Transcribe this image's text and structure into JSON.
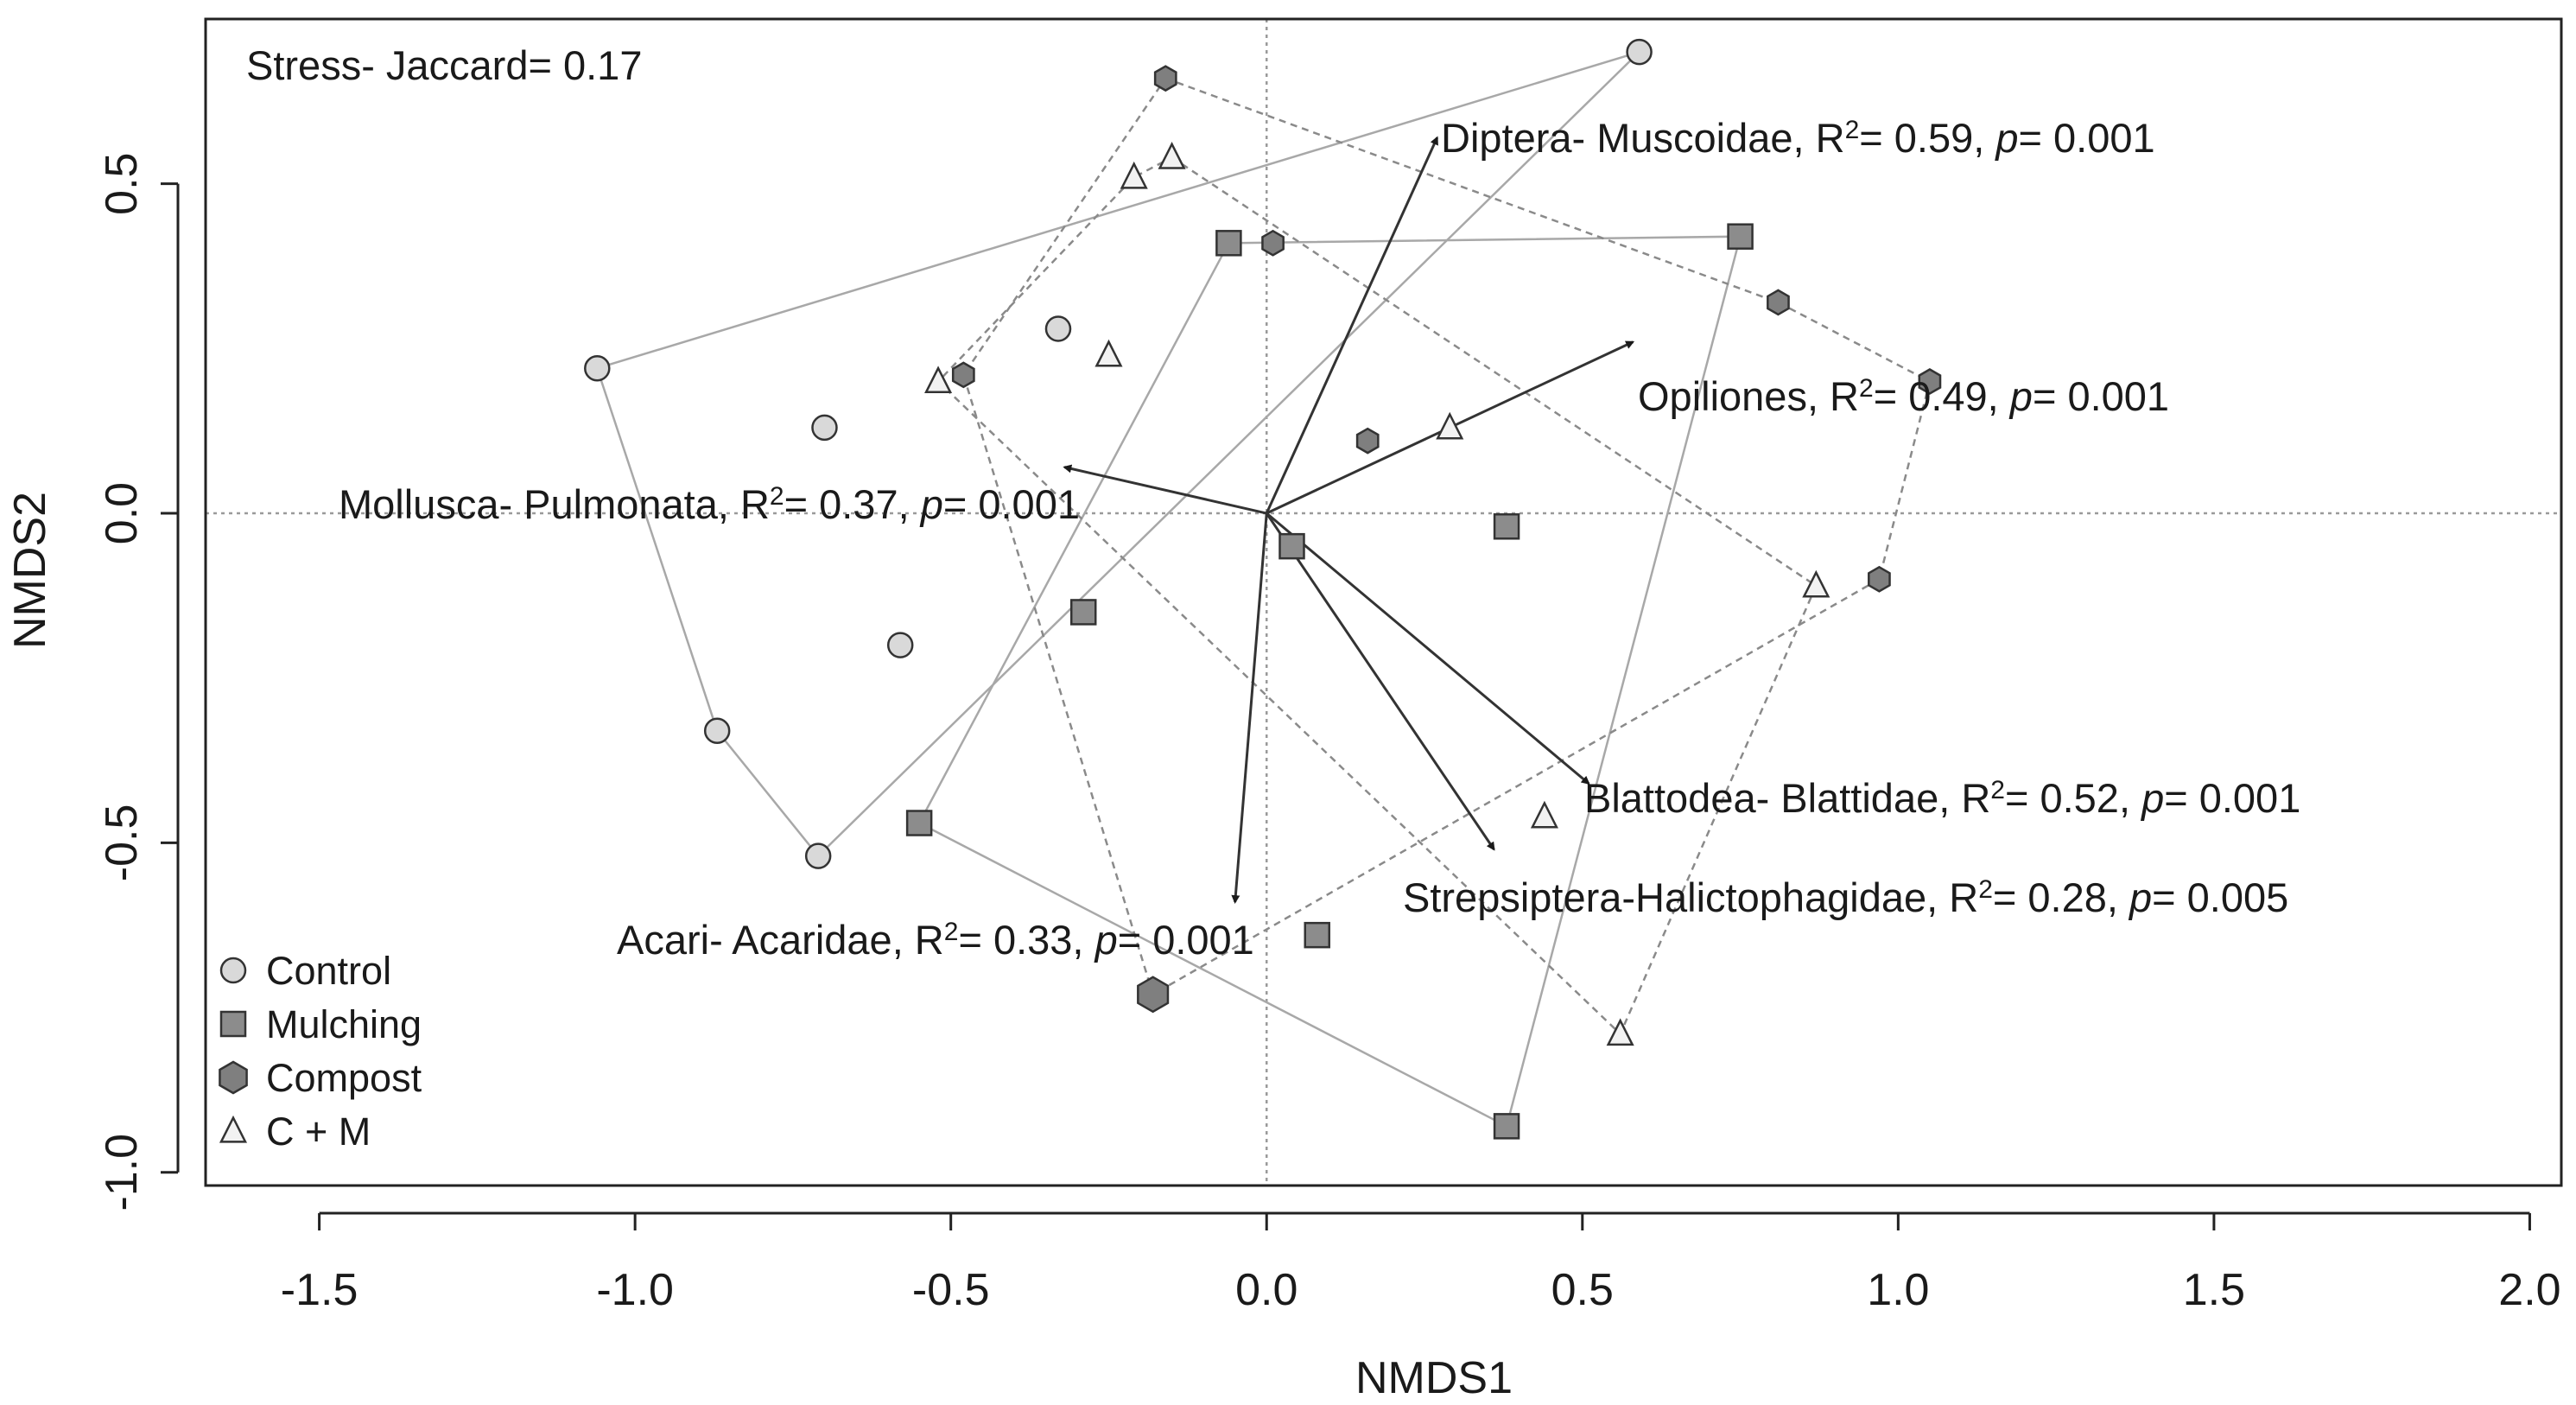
{
  "chart_data": {
    "type": "scatter",
    "subtype": "nmds-ordination-with-convex-hulls-and-vectors",
    "xlabel": "NMDS1",
    "ylabel": "NMDS2",
    "xlim": [
      -1.68,
      2.05
    ],
    "ylim": [
      -1.02,
      0.75
    ],
    "xticks": [
      -1.5,
      -1.0,
      -0.5,
      0.0,
      0.5,
      1.0,
      1.5,
      2.0
    ],
    "xtick_labels": [
      "-1.5",
      "-1.0",
      "-0.5",
      "0.0",
      "0.5",
      "1.0",
      "1.5",
      "2.0"
    ],
    "yticks": [
      0.5,
      0.0,
      -0.5,
      -1.0
    ],
    "ytick_labels": [
      "0.5",
      "0.0",
      "-0.5",
      "-1.0"
    ],
    "annotation": "Stress- Jaccard= 0.17",
    "legend_position": "bottom-left",
    "series": [
      {
        "name": "Control",
        "marker": "circle",
        "color": "#d9d9d9",
        "hull_style": "solid",
        "points": [
          [
            -1.06,
            0.22
          ],
          [
            0.59,
            0.7
          ],
          [
            -0.7,
            0.13
          ],
          [
            -0.33,
            0.28
          ],
          [
            -0.58,
            -0.2
          ],
          [
            -0.87,
            -0.33
          ],
          [
            -0.71,
            -0.52
          ]
        ],
        "hull": [
          [
            -1.06,
            0.22
          ],
          [
            0.59,
            0.7
          ],
          [
            -0.71,
            -0.52
          ],
          [
            -0.87,
            -0.33
          ]
        ]
      },
      {
        "name": "Mulching",
        "marker": "square",
        "color": "#8c8c8c",
        "hull_style": "solid",
        "points": [
          [
            -0.06,
            0.41
          ],
          [
            0.75,
            0.42
          ],
          [
            0.38,
            -0.02
          ],
          [
            0.04,
            -0.05
          ],
          [
            -0.29,
            -0.15
          ],
          [
            -0.55,
            -0.47
          ],
          [
            0.08,
            -0.64
          ],
          [
            0.38,
            -0.93
          ]
        ],
        "hull": [
          [
            -0.06,
            0.41
          ],
          [
            0.75,
            0.42
          ],
          [
            0.38,
            -0.93
          ],
          [
            -0.55,
            -0.47
          ]
        ]
      },
      {
        "name": "Compost",
        "marker": "hexagon",
        "color": "#7f7f7f",
        "hull_style": "dashed",
        "points": [
          [
            -0.16,
            0.66
          ],
          [
            0.01,
            0.41
          ],
          [
            0.81,
            0.32
          ],
          [
            1.05,
            0.2
          ],
          [
            -0.48,
            0.21
          ],
          [
            0.16,
            0.11
          ],
          [
            0.97,
            -0.1
          ],
          [
            -0.18,
            -0.73
          ]
        ],
        "hull": [
          [
            -0.16,
            0.66
          ],
          [
            0.81,
            0.32
          ],
          [
            1.05,
            0.2
          ],
          [
            0.97,
            -0.1
          ],
          [
            -0.18,
            -0.73
          ],
          [
            -0.48,
            0.21
          ]
        ]
      },
      {
        "name": "C + M",
        "marker": "triangle",
        "color": "#f2f2f2",
        "hull_style": "dashed",
        "points": [
          [
            -0.15,
            0.54
          ],
          [
            -0.21,
            0.51
          ],
          [
            -0.25,
            0.24
          ],
          [
            -0.52,
            0.2
          ],
          [
            0.29,
            0.13
          ],
          [
            0.87,
            -0.11
          ],
          [
            0.44,
            -0.46
          ],
          [
            0.56,
            -0.79
          ]
        ],
        "hull": [
          [
            -0.15,
            0.54
          ],
          [
            0.87,
            -0.11
          ],
          [
            0.56,
            -0.79
          ],
          [
            -0.52,
            0.2
          ],
          [
            -0.21,
            0.51
          ]
        ]
      }
    ],
    "vectors": [
      {
        "label_prefix": "Diptera- Muscoidae, R",
        "label_suffix": "= 0.59, ",
        "p_value": "= 0.001",
        "end": [
          0.27,
          0.57
        ]
      },
      {
        "label_prefix": "Opiliones, R",
        "label_suffix": "= 0.49, ",
        "p_value": "= 0.001",
        "end": [
          0.58,
          0.26
        ]
      },
      {
        "label_prefix": "Mollusca- Pulmonata, R",
        "label_suffix": "= 0.37, ",
        "p_value": "= 0.001",
        "end": [
          -0.32,
          0.07
        ]
      },
      {
        "label_prefix": "Blattodea- Blattidae, R",
        "label_suffix": "= 0.52, ",
        "p_value": "= 0.001",
        "end": [
          0.51,
          -0.41
        ]
      },
      {
        "label_prefix": "Strepsiptera-Halictophagidae, R",
        "label_suffix": "= 0.28, ",
        "p_value": "= 0.005",
        "end": [
          0.36,
          -0.51
        ]
      },
      {
        "label_prefix": "Acari- Acaridae, R",
        "label_suffix": "= 0.33, ",
        "p_value": "= 0.001",
        "end": [
          -0.05,
          -0.59
        ]
      }
    ],
    "label_superscript": "2",
    "label_p": "p"
  }
}
